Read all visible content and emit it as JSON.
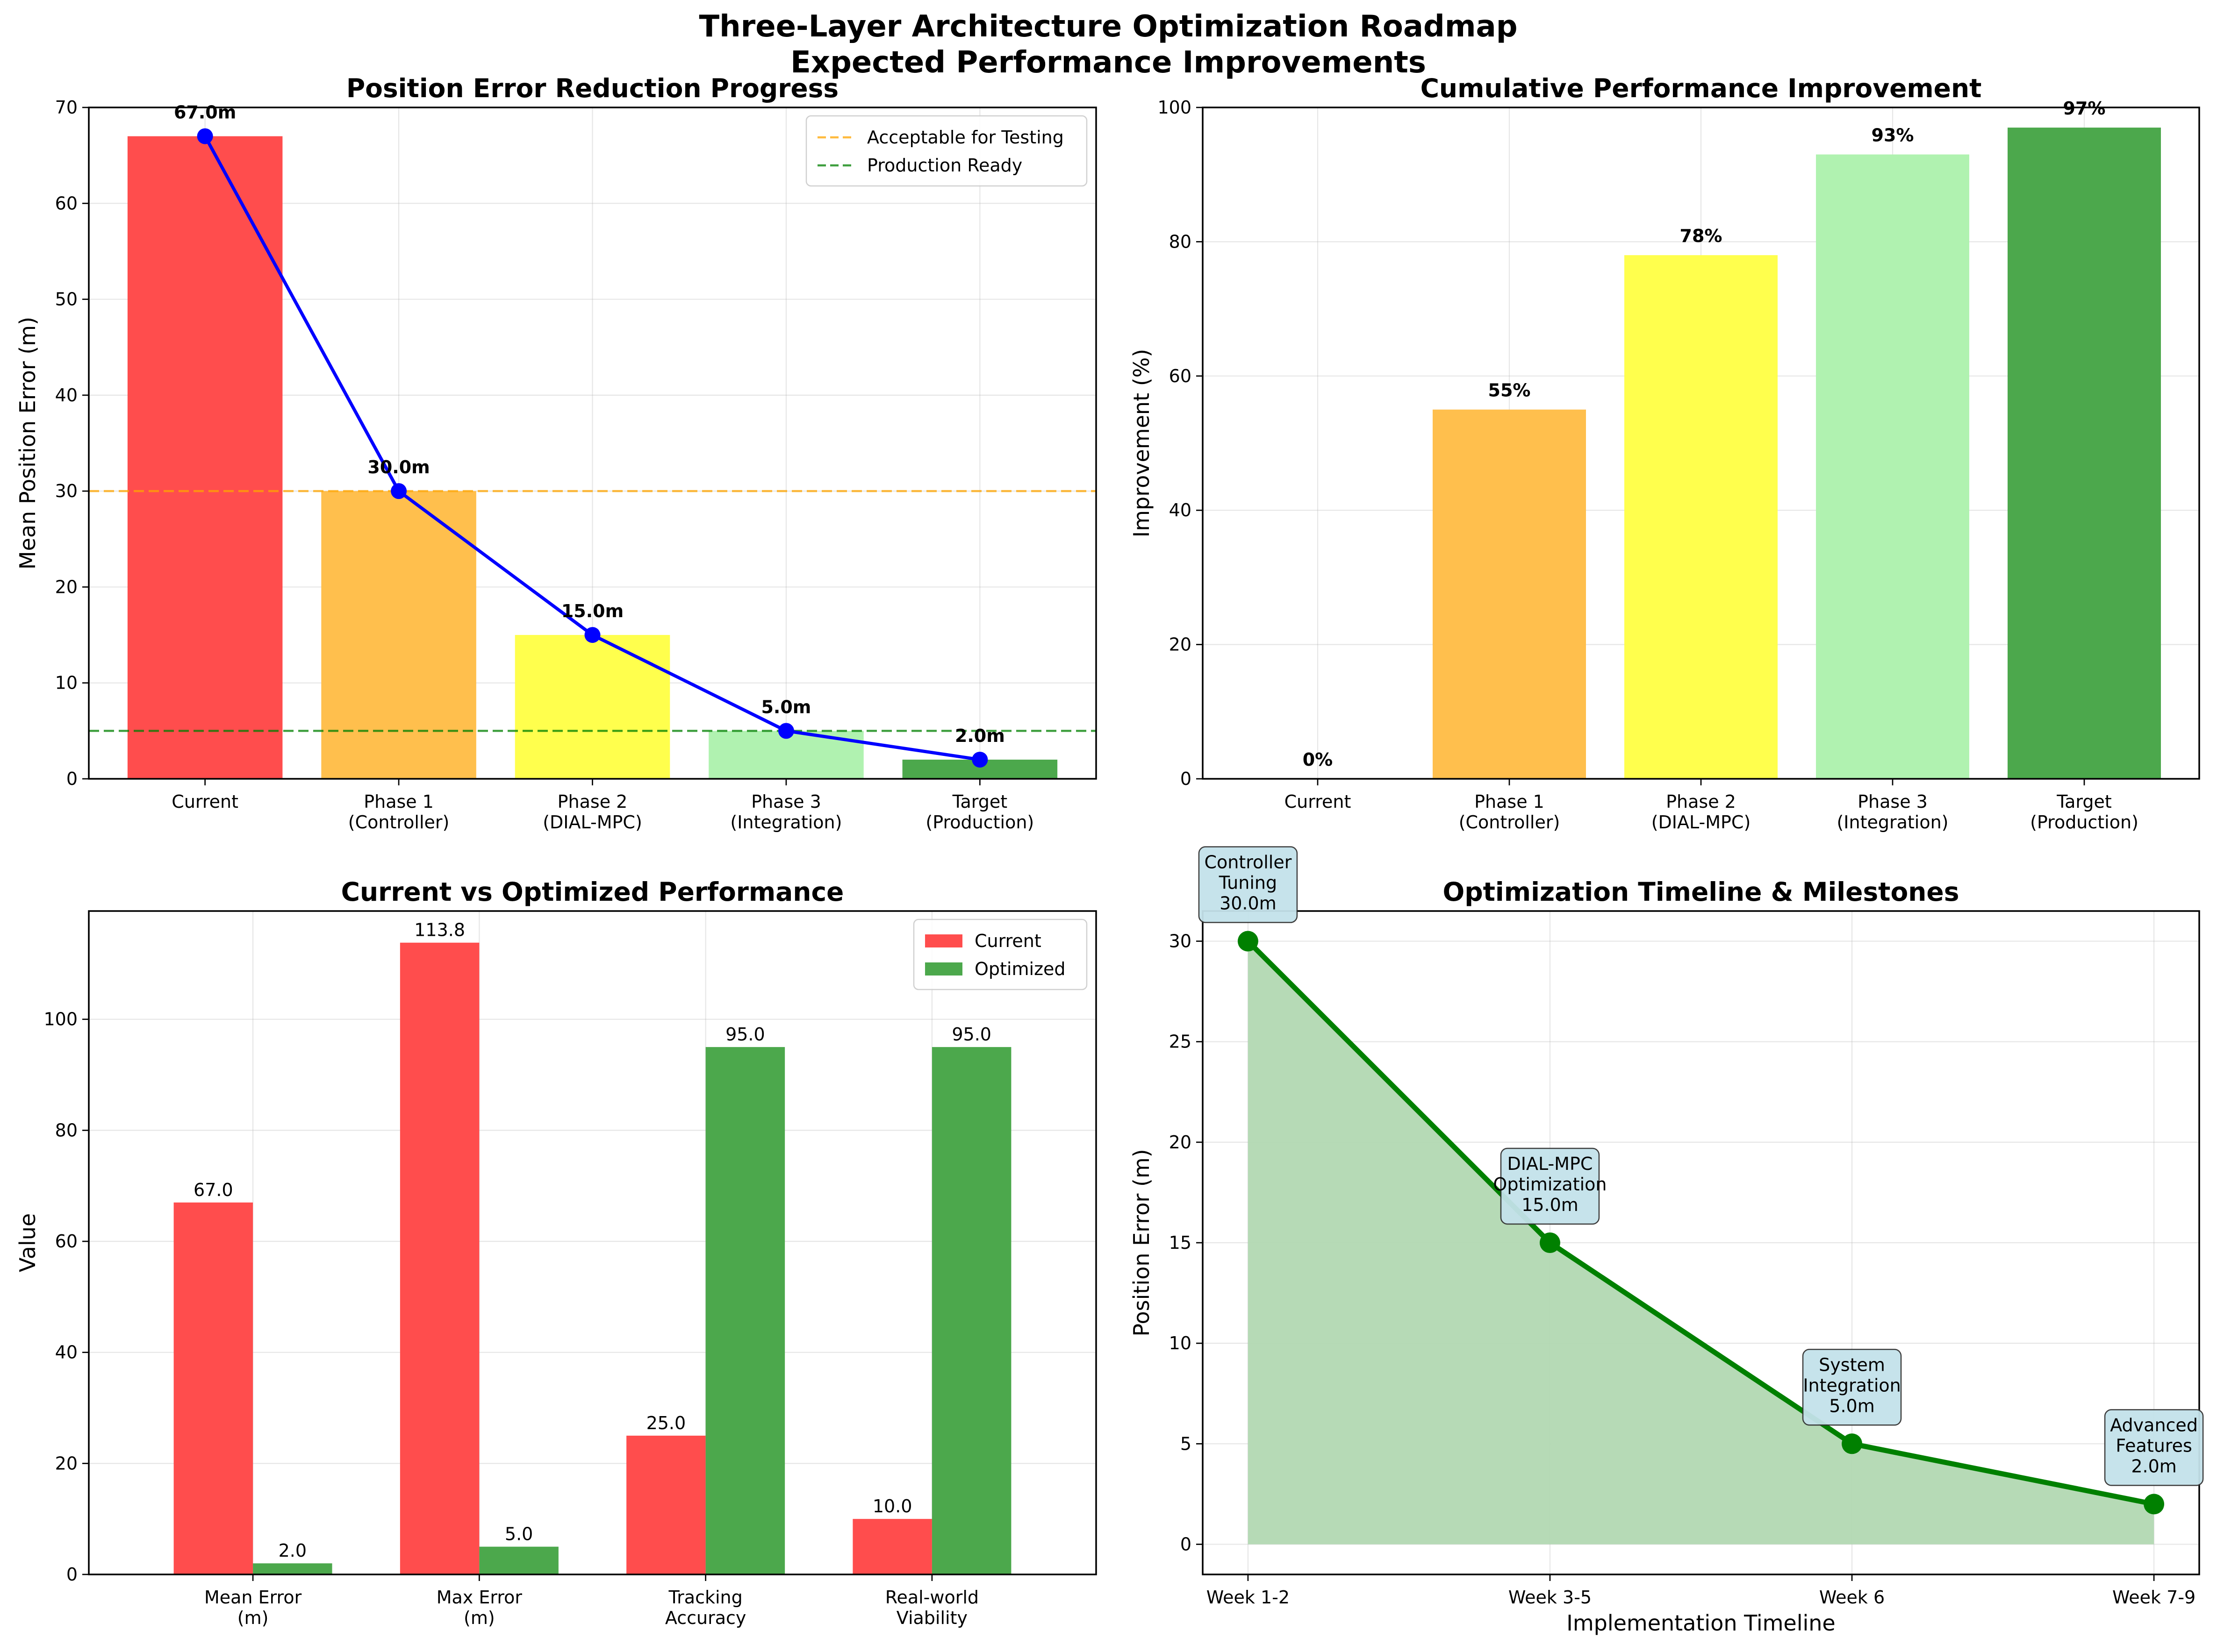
{
  "figure": {
    "suptitle_line1": "Three-Layer Architecture Optimization Roadmap",
    "suptitle_line2": "Expected Performance Improvements"
  },
  "chart_data": [
    {
      "type": "bar",
      "title": "Position Error Reduction Progress",
      "xlabel": "",
      "ylabel": "Mean Position Error (m)",
      "categories": [
        [
          "Current"
        ],
        [
          "Phase 1",
          "(Controller)"
        ],
        [
          "Phase 2",
          "(DIAL-MPC)"
        ],
        [
          "Phase 3",
          "(Integration)"
        ],
        [
          "Target",
          "(Production)"
        ]
      ],
      "values": [
        67.0,
        30.0,
        15.0,
        5.0,
        2.0
      ],
      "value_labels": [
        "67.0m",
        "30.0m",
        "15.0m",
        "5.0m",
        "2.0m"
      ],
      "colors": [
        "#ff4d4d",
        "#ffbf4d",
        "#ffff4d",
        "#b0f2b0",
        "#4ca84c"
      ],
      "line_overlay": {
        "values": [
          67.0,
          30.0,
          15.0,
          5.0,
          2.0
        ],
        "color": "#0000ff"
      },
      "reference_lines": [
        {
          "name": "Acceptable for Testing",
          "y": 30,
          "color": "#ffa500"
        },
        {
          "name": "Production Ready",
          "y": 5,
          "color": "#008000"
        }
      ],
      "ylim": [
        0,
        70
      ],
      "yticks": [
        0,
        10,
        20,
        30,
        40,
        50,
        60,
        70
      ],
      "grid": true,
      "legend_position": "top-right"
    },
    {
      "type": "bar",
      "title": "Cumulative Performance Improvement",
      "xlabel": "",
      "ylabel": "Improvement (%)",
      "categories": [
        [
          "Current"
        ],
        [
          "Phase 1",
          "(Controller)"
        ],
        [
          "Phase 2",
          "(DIAL-MPC)"
        ],
        [
          "Phase 3",
          "(Integration)"
        ],
        [
          "Target",
          "(Production)"
        ]
      ],
      "values": [
        0,
        55,
        78,
        93,
        97
      ],
      "value_labels": [
        "0%",
        "55%",
        "78%",
        "93%",
        "97%"
      ],
      "colors": [
        "#ff4d4d",
        "#ffbf4d",
        "#ffff4d",
        "#b0f2b0",
        "#4ca84c"
      ],
      "ylim": [
        0,
        100
      ],
      "yticks": [
        0,
        20,
        40,
        60,
        80,
        100
      ],
      "grid": true
    },
    {
      "type": "bar",
      "title": "Current vs Optimized Performance",
      "xlabel": "",
      "ylabel": "Value",
      "categories": [
        [
          "Mean Error",
          "(m)"
        ],
        [
          "Max Error",
          "(m)"
        ],
        [
          "Tracking",
          "Accuracy"
        ],
        [
          "Real-world",
          "Viability"
        ]
      ],
      "series": [
        {
          "name": "Current",
          "values": [
            67.0,
            113.8,
            25.0,
            10.0
          ],
          "labels": [
            "67.0",
            "113.8",
            "25.0",
            "10.0"
          ],
          "color": "#ff4d4d"
        },
        {
          "name": "Optimized",
          "values": [
            2.0,
            5.0,
            95.0,
            95.0
          ],
          "labels": [
            "2.0",
            "5.0",
            "95.0",
            "95.0"
          ],
          "color": "#4ca84c"
        }
      ],
      "ylim": [
        0,
        119.5
      ],
      "yticks": [
        0,
        20,
        40,
        60,
        80,
        100
      ],
      "grid": true,
      "legend_position": "top-right"
    },
    {
      "type": "area",
      "title": "Optimization Timeline & Milestones",
      "xlabel": "Implementation Timeline",
      "ylabel": "Position Error (m)",
      "x": [
        "Week 1-2",
        "Week 3-5",
        "Week 6",
        "Week 7-9"
      ],
      "values": [
        30.0,
        15.0,
        5.0,
        2.0
      ],
      "annotations": [
        [
          "Controller",
          "Tuning",
          "30.0m"
        ],
        [
          "DIAL-MPC",
          "Optimization",
          "15.0m"
        ],
        [
          "System",
          "Integration",
          "5.0m"
        ],
        [
          "Advanced",
          "Features",
          "2.0m"
        ]
      ],
      "color": "#008000",
      "fill_color": "#b2d8b2",
      "annotation_box_color": "#c4e2ea",
      "ylim": [
        -1.5,
        31.5
      ],
      "yticks": [
        0,
        5,
        10,
        15,
        20,
        25,
        30
      ],
      "grid": true
    }
  ]
}
